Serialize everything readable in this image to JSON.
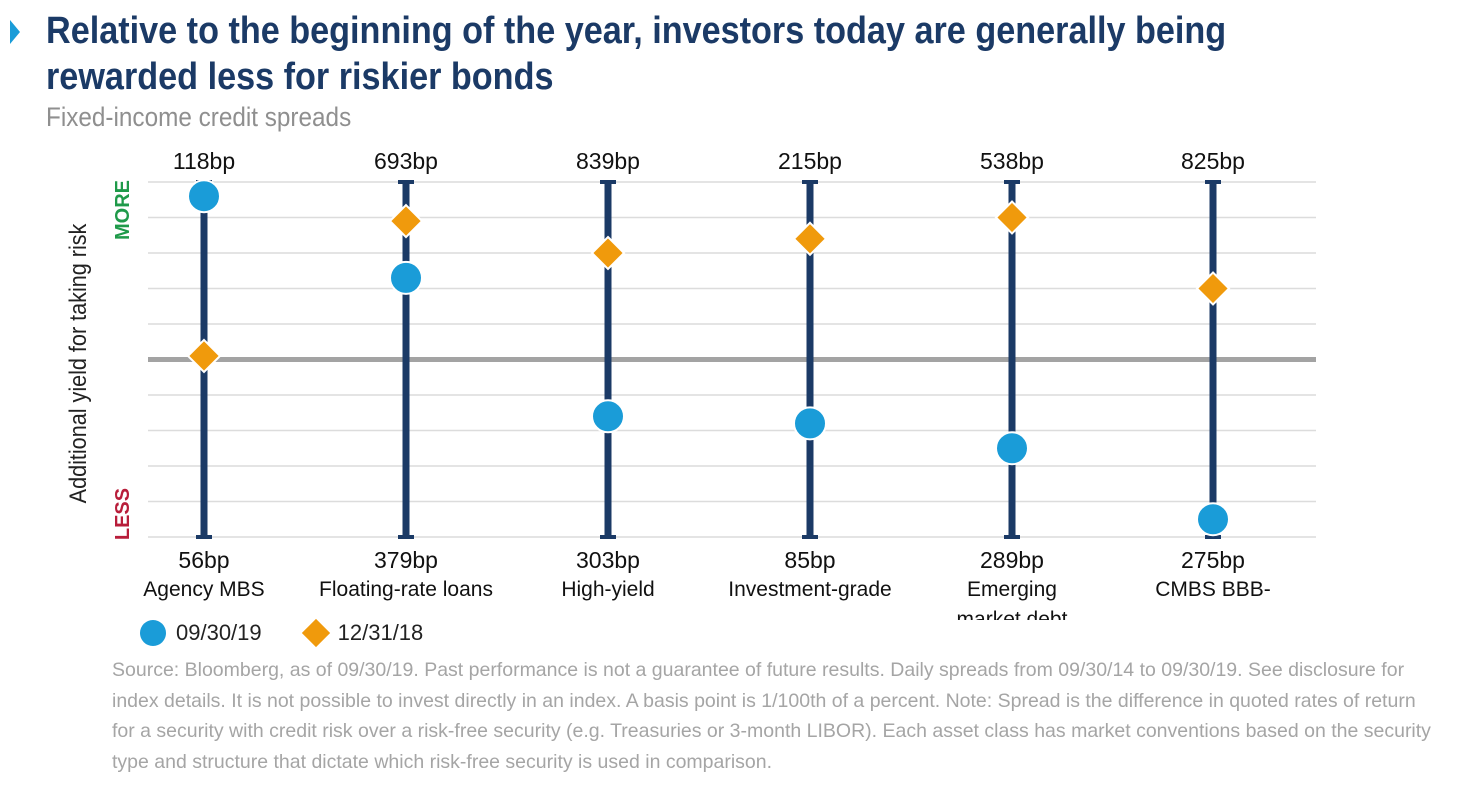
{
  "title": "Relative to the beginning of the year, investors today are generally being rewarded less for riskier bonds",
  "subtitle": "Fixed-income credit spreads",
  "y_axis": {
    "label": "Additional yield for taking risk",
    "more_label": "MORE",
    "less_label": "LESS",
    "more_color": "#1f9a4a",
    "less_color": "#b81d3a"
  },
  "legend": [
    {
      "label": "09/30/19",
      "shape": "circle",
      "color": "#1a9cd8"
    },
    {
      "label": "12/31/18",
      "shape": "diamond",
      "color": "#f09a0c"
    }
  ],
  "chart_data": {
    "type": "range-dot",
    "description_scale": "normalized position within each asset's 5-year spread range (0 = min, 1 = max)",
    "ylim": [
      0,
      1
    ],
    "reference_level": 0.5,
    "categories": [
      {
        "name": "Agency MBS",
        "max_label": "118bp",
        "min_label": "56bp",
        "current_0930": 0.96,
        "ye_1231": 0.51
      },
      {
        "name": "Floating-rate loans",
        "max_label": "693bp",
        "min_label": "379bp",
        "current_0930": 0.73,
        "ye_1231": 0.89
      },
      {
        "name": "High-yield",
        "max_label": "839bp",
        "min_label": "303bp",
        "current_0930": 0.34,
        "ye_1231": 0.8
      },
      {
        "name": "Investment-grade",
        "max_label": "215bp",
        "min_label": "85bp",
        "current_0930": 0.32,
        "ye_1231": 0.84
      },
      {
        "name": "Emerging market debt",
        "name_lines": [
          "Emerging",
          "market debt"
        ],
        "max_label": "538bp",
        "min_label": "289bp",
        "current_0930": 0.25,
        "ye_1231": 0.9
      },
      {
        "name": "CMBS BBB-",
        "max_label": "825bp",
        "min_label": "275bp",
        "current_0930": 0.05,
        "ye_1231": 0.7
      }
    ],
    "series": [
      {
        "name": "09/30/19",
        "key": "current_0930",
        "color": "#1a9cd8",
        "marker": "circle"
      },
      {
        "name": "12/31/18",
        "key": "ye_1231",
        "color": "#f09a0c",
        "marker": "diamond"
      }
    ],
    "range_bar_color": "#1b3a66",
    "grid": true
  },
  "footnote": "Source: Bloomberg, as of 09/30/19. Past performance is not a guarantee of future results. Daily spreads from 09/30/14 to 09/30/19. See disclosure for index details. It is not possible to invest directly in an index. A basis point is 1/100th of a percent. Note: Spread is the difference in quoted rates of return for a security with credit risk over a risk-free security (e.g. Treasuries or 3-month LIBOR). Each asset class has market conventions based on the security type and structure that dictate which risk-free security is used in comparison."
}
